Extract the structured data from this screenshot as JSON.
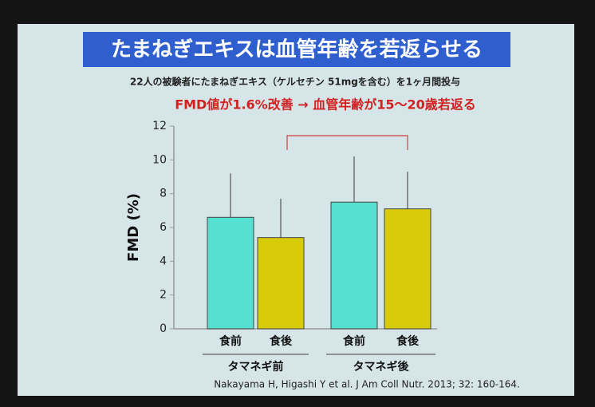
{
  "chart_data": {
    "type": "bar",
    "title": "たまねぎエキスは血管年齢を若返らせる",
    "subtitle": "22人の被験者にたまねぎエキス（ケルセチン 51mgを含む）を1ヶ月間投与",
    "annotation": "FMD値が1.6%改善 → 血管年齢が15〜20歳若返る",
    "y_label": "FMD (%)",
    "source": "Nakayama H, Higashi Y et al. J Am Coll Nutr. 2013; 32: 160-164.",
    "categories": [
      "食前",
      "食後",
      "食前",
      "食後"
    ],
    "group_labels": [
      "タマネギ前",
      "タマネギ後"
    ],
    "values": [
      6.6,
      5.4,
      7.5,
      7.1
    ],
    "errors": [
      2.6,
      2.3,
      2.7,
      2.2
    ],
    "colors": [
      "#55e0d2",
      "#d8cc0a",
      "#55e0d2",
      "#d8cc0a"
    ],
    "ylim": [
      0,
      12
    ],
    "yticks": [
      0,
      2,
      4,
      6,
      8,
      10,
      12
    ]
  }
}
